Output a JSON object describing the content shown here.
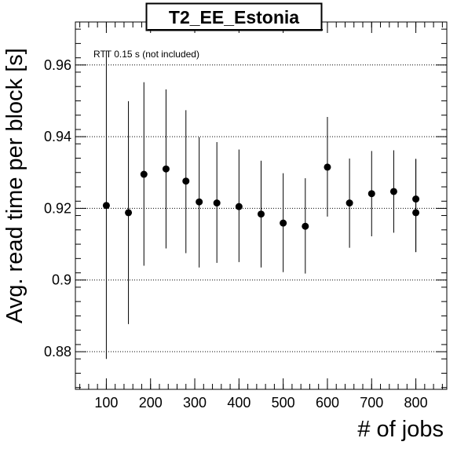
{
  "chart_data": {
    "type": "scatter",
    "title": "T2_EE_Estonia",
    "xlabel": "# of jobs",
    "ylabel": "Avg. read time per block [s]",
    "annotation": "RTT 0.15 s (not included)",
    "xlim": [
      30,
      870
    ],
    "ylim": [
      0.8695,
      0.972
    ],
    "x_ticks": [
      100,
      200,
      300,
      400,
      500,
      600,
      700,
      800
    ],
    "y_ticks": [
      0.88,
      0.9,
      0.92,
      0.94,
      0.96
    ],
    "y_tick_labels": [
      "0.88",
      "0.9",
      "0.92",
      "0.94",
      "0.96"
    ],
    "grid": "horizontal dotted",
    "points": [
      {
        "x": 100,
        "y": 0.9208,
        "ylow": 0.878,
        "yhigh": 0.964
      },
      {
        "x": 150,
        "y": 0.9188,
        "ylow": 0.8877,
        "yhigh": 0.9499
      },
      {
        "x": 185,
        "y": 0.9295,
        "ylow": 0.904,
        "yhigh": 0.9552
      },
      {
        "x": 235,
        "y": 0.931,
        "ylow": 0.9088,
        "yhigh": 0.9532
      },
      {
        "x": 280,
        "y": 0.9276,
        "ylow": 0.9075,
        "yhigh": 0.9474
      },
      {
        "x": 310,
        "y": 0.9218,
        "ylow": 0.9035,
        "yhigh": 0.9399
      },
      {
        "x": 350,
        "y": 0.9215,
        "ylow": 0.9048,
        "yhigh": 0.9385
      },
      {
        "x": 400,
        "y": 0.9205,
        "ylow": 0.905,
        "yhigh": 0.9364
      },
      {
        "x": 450,
        "y": 0.9184,
        "ylow": 0.9035,
        "yhigh": 0.9333
      },
      {
        "x": 500,
        "y": 0.9159,
        "ylow": 0.9022,
        "yhigh": 0.9298
      },
      {
        "x": 550,
        "y": 0.915,
        "ylow": 0.9018,
        "yhigh": 0.9284
      },
      {
        "x": 600,
        "y": 0.9315,
        "ylow": 0.9177,
        "yhigh": 0.9455
      },
      {
        "x": 650,
        "y": 0.9215,
        "ylow": 0.909,
        "yhigh": 0.9339
      },
      {
        "x": 700,
        "y": 0.9241,
        "ylow": 0.9122,
        "yhigh": 0.936
      },
      {
        "x": 750,
        "y": 0.9247,
        "ylow": 0.9132,
        "yhigh": 0.9362
      },
      {
        "x": 800,
        "y": 0.9188,
        "ylow": 0.9078,
        "yhigh": 0.9338
      },
      {
        "x": 800,
        "y": 0.9226,
        "ylow": 0.9078,
        "yhigh": 0.9338
      }
    ]
  }
}
